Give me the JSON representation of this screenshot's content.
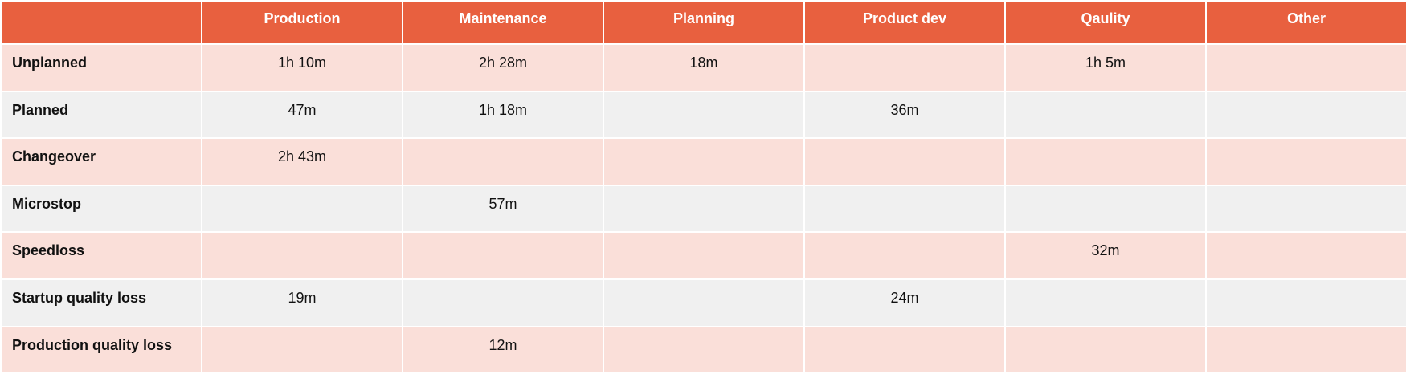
{
  "table": {
    "columns": [
      "Production",
      "Maintenance",
      "Planning",
      "Product dev",
      "Qaulity",
      "Other"
    ],
    "rows": [
      {
        "label": "Unplanned",
        "cells": [
          "1h 10m",
          "2h 28m",
          "18m",
          null,
          "1h 5m",
          null
        ]
      },
      {
        "label": "Planned",
        "cells": [
          "47m",
          "1h 18m",
          null,
          "36m",
          null,
          null
        ]
      },
      {
        "label": "Changeover",
        "cells": [
          "2h 43m",
          null,
          null,
          null,
          null,
          null
        ]
      },
      {
        "label": "Microstop",
        "cells": [
          null,
          "57m",
          null,
          null,
          null,
          null
        ]
      },
      {
        "label": "Speedloss",
        "cells": [
          null,
          null,
          null,
          null,
          "32m",
          null
        ]
      },
      {
        "label": "Startup quality loss",
        "cells": [
          "19m",
          null,
          null,
          "24m",
          null,
          null
        ]
      },
      {
        "label": "Production quality loss",
        "cells": [
          null,
          "12m",
          null,
          null,
          null,
          null
        ]
      }
    ]
  }
}
